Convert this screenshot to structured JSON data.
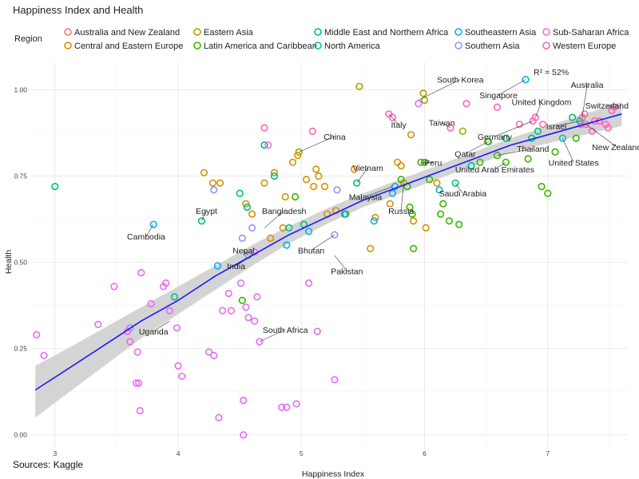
{
  "chart_data": {
    "type": "scatter",
    "title": "Happiness Index and Health",
    "xlabel": "Happiness Index",
    "ylabel": "Health",
    "caption": "Sources: Kaggle",
    "annotation": "R² = 52%",
    "legend_title": "Region",
    "legend_position": "top",
    "xlim": [
      2.8,
      7.65
    ],
    "ylim": [
      -0.04,
      1.08
    ],
    "x_ticks": [
      3,
      4,
      5,
      6,
      7
    ],
    "x_tick_labels": [
      "3",
      "4",
      "5",
      "6",
      "7"
    ],
    "y_ticks": [
      0,
      0.25,
      0.5,
      0.75,
      1
    ],
    "y_tick_labels": [
      "0.00",
      "0.25",
      "0.50",
      "0.75",
      "1.00"
    ],
    "grid": true,
    "regions": [
      {
        "name": "Australia and New Zealand",
        "color": "#F8766D"
      },
      {
        "name": "Central and Eastern Europe",
        "color": "#D89000"
      },
      {
        "name": "Eastern Asia",
        "color": "#A3A500"
      },
      {
        "name": "Latin America and Caribbean",
        "color": "#39B600"
      },
      {
        "name": "Middle East and Northern Africa",
        "color": "#00BF7D"
      },
      {
        "name": "North America",
        "color": "#00BFC4"
      },
      {
        "name": "Southeastern Asia",
        "color": "#00B0F6"
      },
      {
        "name": "Southern Asia",
        "color": "#9590FF"
      },
      {
        "name": "Sub-Saharan Africa",
        "color": "#E76BF3"
      },
      {
        "name": "Western Europe",
        "color": "#FF62BC"
      }
    ],
    "trend": {
      "x": [
        2.84,
        3.1,
        3.4,
        3.7,
        4.0,
        4.3,
        4.6,
        4.9,
        5.2,
        5.5,
        5.8,
        6.1,
        6.4,
        6.7,
        7.0,
        7.3,
        7.6
      ],
      "y": [
        0.13,
        0.19,
        0.26,
        0.33,
        0.39,
        0.46,
        0.52,
        0.58,
        0.63,
        0.68,
        0.72,
        0.76,
        0.8,
        0.84,
        0.87,
        0.9,
        0.93
      ],
      "upper": [
        0.2,
        0.25,
        0.31,
        0.37,
        0.43,
        0.49,
        0.55,
        0.605,
        0.655,
        0.7,
        0.74,
        0.78,
        0.82,
        0.86,
        0.895,
        0.93,
        0.965
      ],
      "lower": [
        0.05,
        0.12,
        0.2,
        0.28,
        0.35,
        0.42,
        0.49,
        0.555,
        0.61,
        0.66,
        0.7,
        0.74,
        0.78,
        0.82,
        0.845,
        0.87,
        0.895
      ]
    },
    "points": [
      {
        "r": 0,
        "x": 7.28,
        "y": 0.92
      },
      {
        "r": 0,
        "x": 7.31,
        "y": 0.9
      },
      {
        "r": 1,
        "x": 4.21,
        "y": 0.76
      },
      {
        "r": 1,
        "x": 4.28,
        "y": 0.73
      },
      {
        "r": 1,
        "x": 4.34,
        "y": 0.73
      },
      {
        "r": 1,
        "x": 4.55,
        "y": 0.67
      },
      {
        "r": 1,
        "x": 4.6,
        "y": 0.64
      },
      {
        "r": 1,
        "x": 4.7,
        "y": 0.73
      },
      {
        "r": 1,
        "x": 4.78,
        "y": 0.76
      },
      {
        "r": 1,
        "x": 4.87,
        "y": 0.69
      },
      {
        "r": 1,
        "x": 4.93,
        "y": 0.79
      },
      {
        "r": 1,
        "x": 4.97,
        "y": 0.81
      },
      {
        "r": 1,
        "x": 5.04,
        "y": 0.74
      },
      {
        "r": 1,
        "x": 5.1,
        "y": 0.72
      },
      {
        "r": 1,
        "x": 5.12,
        "y": 0.77
      },
      {
        "r": 1,
        "x": 5.14,
        "y": 0.75
      },
      {
        "r": 1,
        "x": 5.19,
        "y": 0.72
      },
      {
        "r": 1,
        "x": 5.21,
        "y": 0.64
      },
      {
        "r": 1,
        "x": 5.28,
        "y": 0.65
      },
      {
        "r": 1,
        "x": 5.43,
        "y": 0.77
      },
      {
        "r": 1,
        "x": 5.56,
        "y": 0.54
      },
      {
        "r": 1,
        "x": 5.6,
        "y": 0.63
      },
      {
        "r": 1,
        "x": 5.72,
        "y": 0.67
      },
      {
        "r": 1,
        "x": 5.78,
        "y": 0.79
      },
      {
        "r": 1,
        "x": 5.81,
        "y": 0.78
      },
      {
        "r": 1,
        "x": 5.83,
        "y": 0.73
      },
      {
        "r": 1,
        "x": 5.89,
        "y": 0.87
      },
      {
        "r": 1,
        "x": 5.91,
        "y": 0.62
      },
      {
        "r": 1,
        "x": 6.01,
        "y": 0.6
      },
      {
        "r": 1,
        "x": 6.1,
        "y": 0.73
      },
      {
        "r": 1,
        "x": 6.51,
        "y": 0.85
      },
      {
        "r": 1,
        "x": 4.75,
        "y": 0.57
      },
      {
        "r": 1,
        "x": 4.85,
        "y": 0.6
      },
      {
        "r": 2,
        "x": 5.47,
        "y": 1.01
      },
      {
        "r": 2,
        "x": 5.99,
        "y": 0.99
      },
      {
        "r": 2,
        "x": 6.0,
        "y": 0.97
      },
      {
        "r": 2,
        "x": 6.31,
        "y": 0.88
      },
      {
        "r": 2,
        "x": 4.98,
        "y": 0.82
      },
      {
        "r": 3,
        "x": 4.52,
        "y": 0.39
      },
      {
        "r": 3,
        "x": 4.95,
        "y": 0.69
      },
      {
        "r": 3,
        "x": 5.36,
        "y": 0.64
      },
      {
        "r": 3,
        "x": 5.81,
        "y": 0.74
      },
      {
        "r": 3,
        "x": 5.86,
        "y": 0.72
      },
      {
        "r": 3,
        "x": 5.88,
        "y": 0.66
      },
      {
        "r": 3,
        "x": 5.9,
        "y": 0.64
      },
      {
        "r": 3,
        "x": 5.91,
        "y": 0.54
      },
      {
        "r": 3,
        "x": 5.97,
        "y": 0.79
      },
      {
        "r": 3,
        "x": 6.0,
        "y": 0.79
      },
      {
        "r": 3,
        "x": 6.04,
        "y": 0.74
      },
      {
        "r": 3,
        "x": 6.13,
        "y": 0.64
      },
      {
        "r": 3,
        "x": 6.15,
        "y": 0.67
      },
      {
        "r": 3,
        "x": 6.2,
        "y": 0.62
      },
      {
        "r": 3,
        "x": 6.28,
        "y": 0.61
      },
      {
        "r": 3,
        "x": 6.45,
        "y": 0.79
      },
      {
        "r": 3,
        "x": 6.59,
        "y": 0.81
      },
      {
        "r": 3,
        "x": 6.66,
        "y": 0.79
      },
      {
        "r": 3,
        "x": 6.84,
        "y": 0.8
      },
      {
        "r": 3,
        "x": 6.95,
        "y": 0.72
      },
      {
        "r": 3,
        "x": 7.0,
        "y": 0.7
      },
      {
        "r": 3,
        "x": 7.23,
        "y": 0.86
      },
      {
        "r": 3,
        "x": 7.06,
        "y": 0.82
      },
      {
        "r": 4,
        "x": 3.0,
        "y": 0.72
      },
      {
        "r": 4,
        "x": 3.97,
        "y": 0.4
      },
      {
        "r": 4,
        "x": 4.19,
        "y": 0.62
      },
      {
        "r": 4,
        "x": 4.5,
        "y": 0.7
      },
      {
        "r": 4,
        "x": 4.56,
        "y": 0.66
      },
      {
        "r": 4,
        "x": 4.7,
        "y": 0.84
      },
      {
        "r": 4,
        "x": 4.78,
        "y": 0.75
      },
      {
        "r": 4,
        "x": 4.9,
        "y": 0.6
      },
      {
        "r": 4,
        "x": 5.02,
        "y": 0.61
      },
      {
        "r": 4,
        "x": 5.45,
        "y": 0.73
      },
      {
        "r": 4,
        "x": 6.25,
        "y": 0.73
      },
      {
        "r": 4,
        "x": 6.38,
        "y": 0.78
      },
      {
        "r": 4,
        "x": 6.52,
        "y": 0.85
      },
      {
        "r": 4,
        "x": 6.66,
        "y": 0.86
      },
      {
        "r": 4,
        "x": 6.87,
        "y": 0.86
      },
      {
        "r": 4,
        "x": 6.92,
        "y": 0.88
      },
      {
        "r": 4,
        "x": 7.2,
        "y": 0.92
      },
      {
        "r": 5,
        "x": 7.12,
        "y": 0.86
      },
      {
        "r": 5,
        "x": 7.26,
        "y": 0.91
      },
      {
        "r": 6,
        "x": 3.8,
        "y": 0.61
      },
      {
        "r": 6,
        "x": 4.32,
        "y": 0.49
      },
      {
        "r": 6,
        "x": 4.88,
        "y": 0.55
      },
      {
        "r": 6,
        "x": 5.06,
        "y": 0.59
      },
      {
        "r": 6,
        "x": 5.35,
        "y": 0.64
      },
      {
        "r": 6,
        "x": 5.59,
        "y": 0.62
      },
      {
        "r": 6,
        "x": 5.74,
        "y": 0.7
      },
      {
        "r": 6,
        "x": 5.76,
        "y": 0.72
      },
      {
        "r": 6,
        "x": 6.12,
        "y": 0.71
      },
      {
        "r": 6,
        "x": 6.82,
        "y": 1.03
      },
      {
        "r": 7,
        "x": 3.61,
        "y": 0.31
      },
      {
        "r": 7,
        "x": 4.29,
        "y": 0.71
      },
      {
        "r": 7,
        "x": 4.52,
        "y": 0.57
      },
      {
        "r": 7,
        "x": 4.57,
        "y": 0.52
      },
      {
        "r": 7,
        "x": 4.6,
        "y": 0.6
      },
      {
        "r": 7,
        "x": 5.27,
        "y": 0.58
      },
      {
        "r": 7,
        "x": 5.29,
        "y": 0.71
      },
      {
        "r": 8,
        "x": 2.85,
        "y": 0.29
      },
      {
        "r": 8,
        "x": 2.91,
        "y": 0.23
      },
      {
        "r": 8,
        "x": 3.35,
        "y": 0.32
      },
      {
        "r": 8,
        "x": 3.48,
        "y": 0.43
      },
      {
        "r": 8,
        "x": 3.59,
        "y": 0.3
      },
      {
        "r": 8,
        "x": 3.61,
        "y": 0.27
      },
      {
        "r": 8,
        "x": 3.67,
        "y": 0.24
      },
      {
        "r": 8,
        "x": 3.7,
        "y": 0.47
      },
      {
        "r": 8,
        "x": 3.78,
        "y": 0.38
      },
      {
        "r": 8,
        "x": 3.88,
        "y": 0.43
      },
      {
        "r": 8,
        "x": 3.9,
        "y": 0.44
      },
      {
        "r": 8,
        "x": 3.93,
        "y": 0.36
      },
      {
        "r": 8,
        "x": 3.99,
        "y": 0.31
      },
      {
        "r": 8,
        "x": 4.0,
        "y": 0.2
      },
      {
        "r": 8,
        "x": 4.03,
        "y": 0.17
      },
      {
        "r": 8,
        "x": 3.66,
        "y": 0.15
      },
      {
        "r": 8,
        "x": 3.68,
        "y": 0.15
      },
      {
        "r": 8,
        "x": 3.69,
        "y": 0.07
      },
      {
        "r": 8,
        "x": 4.25,
        "y": 0.24
      },
      {
        "r": 8,
        "x": 4.29,
        "y": 0.23
      },
      {
        "r": 8,
        "x": 4.33,
        "y": 0.05
      },
      {
        "r": 8,
        "x": 4.36,
        "y": 0.36
      },
      {
        "r": 8,
        "x": 4.41,
        "y": 0.41
      },
      {
        "r": 8,
        "x": 4.43,
        "y": 0.36
      },
      {
        "r": 8,
        "x": 4.51,
        "y": 0.44
      },
      {
        "r": 8,
        "x": 4.53,
        "y": 0.1
      },
      {
        "r": 8,
        "x": 4.53,
        "y": 0.0
      },
      {
        "r": 8,
        "x": 4.55,
        "y": 0.37
      },
      {
        "r": 8,
        "x": 4.57,
        "y": 0.34
      },
      {
        "r": 8,
        "x": 4.62,
        "y": 0.33
      },
      {
        "r": 8,
        "x": 4.64,
        "y": 0.4
      },
      {
        "r": 8,
        "x": 4.66,
        "y": 0.27
      },
      {
        "r": 8,
        "x": 4.84,
        "y": 0.08
      },
      {
        "r": 8,
        "x": 4.88,
        "y": 0.08
      },
      {
        "r": 8,
        "x": 4.96,
        "y": 0.09
      },
      {
        "r": 8,
        "x": 5.06,
        "y": 0.44
      },
      {
        "r": 8,
        "x": 5.13,
        "y": 0.3
      },
      {
        "r": 8,
        "x": 5.27,
        "y": 0.16
      },
      {
        "r": 8,
        "x": 5.95,
        "y": 0.96
      },
      {
        "r": 8,
        "x": 4.62,
        "y": 0.53
      },
      {
        "r": 8,
        "x": 4.73,
        "y": 0.84
      },
      {
        "r": 9,
        "x": 4.7,
        "y": 0.89
      },
      {
        "r": 9,
        "x": 5.09,
        "y": 0.88
      },
      {
        "r": 9,
        "x": 5.71,
        "y": 0.93
      },
      {
        "r": 9,
        "x": 5.74,
        "y": 0.92
      },
      {
        "r": 9,
        "x": 6.21,
        "y": 0.89
      },
      {
        "r": 9,
        "x": 6.34,
        "y": 0.96
      },
      {
        "r": 9,
        "x": 6.59,
        "y": 0.95
      },
      {
        "r": 9,
        "x": 6.77,
        "y": 0.9
      },
      {
        "r": 9,
        "x": 6.88,
        "y": 0.91
      },
      {
        "r": 9,
        "x": 6.9,
        "y": 0.92
      },
      {
        "r": 9,
        "x": 6.96,
        "y": 0.9
      },
      {
        "r": 9,
        "x": 7.27,
        "y": 0.9
      },
      {
        "r": 9,
        "x": 7.38,
        "y": 0.91
      },
      {
        "r": 9,
        "x": 7.42,
        "y": 0.91
      },
      {
        "r": 9,
        "x": 7.47,
        "y": 0.9
      },
      {
        "r": 9,
        "x": 7.52,
        "y": 0.94
      },
      {
        "r": 9,
        "x": 7.54,
        "y": 0.95
      },
      {
        "r": 9,
        "x": 7.49,
        "y": 0.89
      },
      {
        "r": 9,
        "x": 7.3,
        "y": 0.93
      },
      {
        "r": 9,
        "x": 7.36,
        "y": 0.88
      }
    ],
    "labels": [
      {
        "text": "South Korea",
        "x": 6.29,
        "y": 1.03,
        "px": 5.95,
        "py": 0.97
      },
      {
        "text": "Singapore",
        "x": 6.6,
        "y": 0.985,
        "px": 6.82,
        "py": 1.03
      },
      {
        "text": "Australia",
        "x": 7.32,
        "y": 1.015,
        "px": 7.28,
        "py": 0.92
      },
      {
        "text": "United Kingdom",
        "x": 6.95,
        "y": 0.965,
        "px": 6.9,
        "py": 0.92
      },
      {
        "text": "Switzerland",
        "x": 7.48,
        "y": 0.955,
        "px": 7.54,
        "py": 0.95
      },
      {
        "text": "Italy",
        "x": 5.79,
        "y": 0.9,
        "px": 5.71,
        "py": 0.93
      },
      {
        "text": "Taiwan",
        "x": 6.14,
        "y": 0.905,
        "px": 6.21,
        "py": 0.89
      },
      {
        "text": "China",
        "x": 5.27,
        "y": 0.865,
        "px": 4.98,
        "py": 0.82
      },
      {
        "text": "Israel",
        "x": 7.07,
        "y": 0.895,
        "px": 7.26,
        "py": 0.91
      },
      {
        "text": "Germany",
        "x": 6.57,
        "y": 0.865,
        "px": 6.88,
        "py": 0.91
      },
      {
        "text": "New Zealand",
        "x": 7.56,
        "y": 0.835,
        "px": 7.31,
        "py": 0.9
      },
      {
        "text": "Thailand",
        "x": 6.88,
        "y": 0.83,
        "px": 6.59,
        "py": 0.81
      },
      {
        "text": "Qatar",
        "x": 6.33,
        "y": 0.815,
        "px": 6.52,
        "py": 0.85
      },
      {
        "text": "Peru",
        "x": 6.07,
        "y": 0.79,
        "px": 5.97,
        "py": 0.79
      },
      {
        "text": "United States",
        "x": 7.21,
        "y": 0.79,
        "px": 7.12,
        "py": 0.86
      },
      {
        "text": "Vietnam",
        "x": 5.54,
        "y": 0.775,
        "px": 5.45,
        "py": 0.73
      },
      {
        "text": "United Arab Emirates",
        "x": 6.57,
        "y": 0.77,
        "px": 6.66,
        "py": 0.79
      },
      {
        "text": "Malaysia",
        "x": 5.52,
        "y": 0.69,
        "px": 5.74,
        "py": 0.72
      },
      {
        "text": "Saudi Arabia",
        "x": 6.31,
        "y": 0.7,
        "px": 6.25,
        "py": 0.73
      },
      {
        "text": "Russia",
        "x": 5.81,
        "y": 0.65,
        "px": 5.83,
        "py": 0.73
      },
      {
        "text": "Egypt",
        "x": 4.23,
        "y": 0.65,
        "px": 4.19,
        "py": 0.62
      },
      {
        "text": "Bangladesh",
        "x": 4.86,
        "y": 0.65,
        "px": 4.7,
        "py": 0.6
      },
      {
        "text": "Cambodia",
        "x": 3.74,
        "y": 0.575,
        "px": 3.8,
        "py": 0.61
      },
      {
        "text": "Nepal",
        "x": 4.53,
        "y": 0.535,
        "px": 4.57,
        "py": 0.52
      },
      {
        "text": "Bhutan",
        "x": 5.08,
        "y": 0.535,
        "px": 5.27,
        "py": 0.58
      },
      {
        "text": "India",
        "x": 4.47,
        "y": 0.49,
        "px": 4.6,
        "py": 0.52
      },
      {
        "text": "Pakistan",
        "x": 5.37,
        "y": 0.475,
        "px": 5.27,
        "py": 0.52
      },
      {
        "text": "Uganda",
        "x": 3.8,
        "y": 0.3,
        "px": 3.93,
        "py": 0.33
      },
      {
        "text": "South Africa",
        "x": 4.87,
        "y": 0.305,
        "px": 4.66,
        "py": 0.27
      }
    ]
  }
}
